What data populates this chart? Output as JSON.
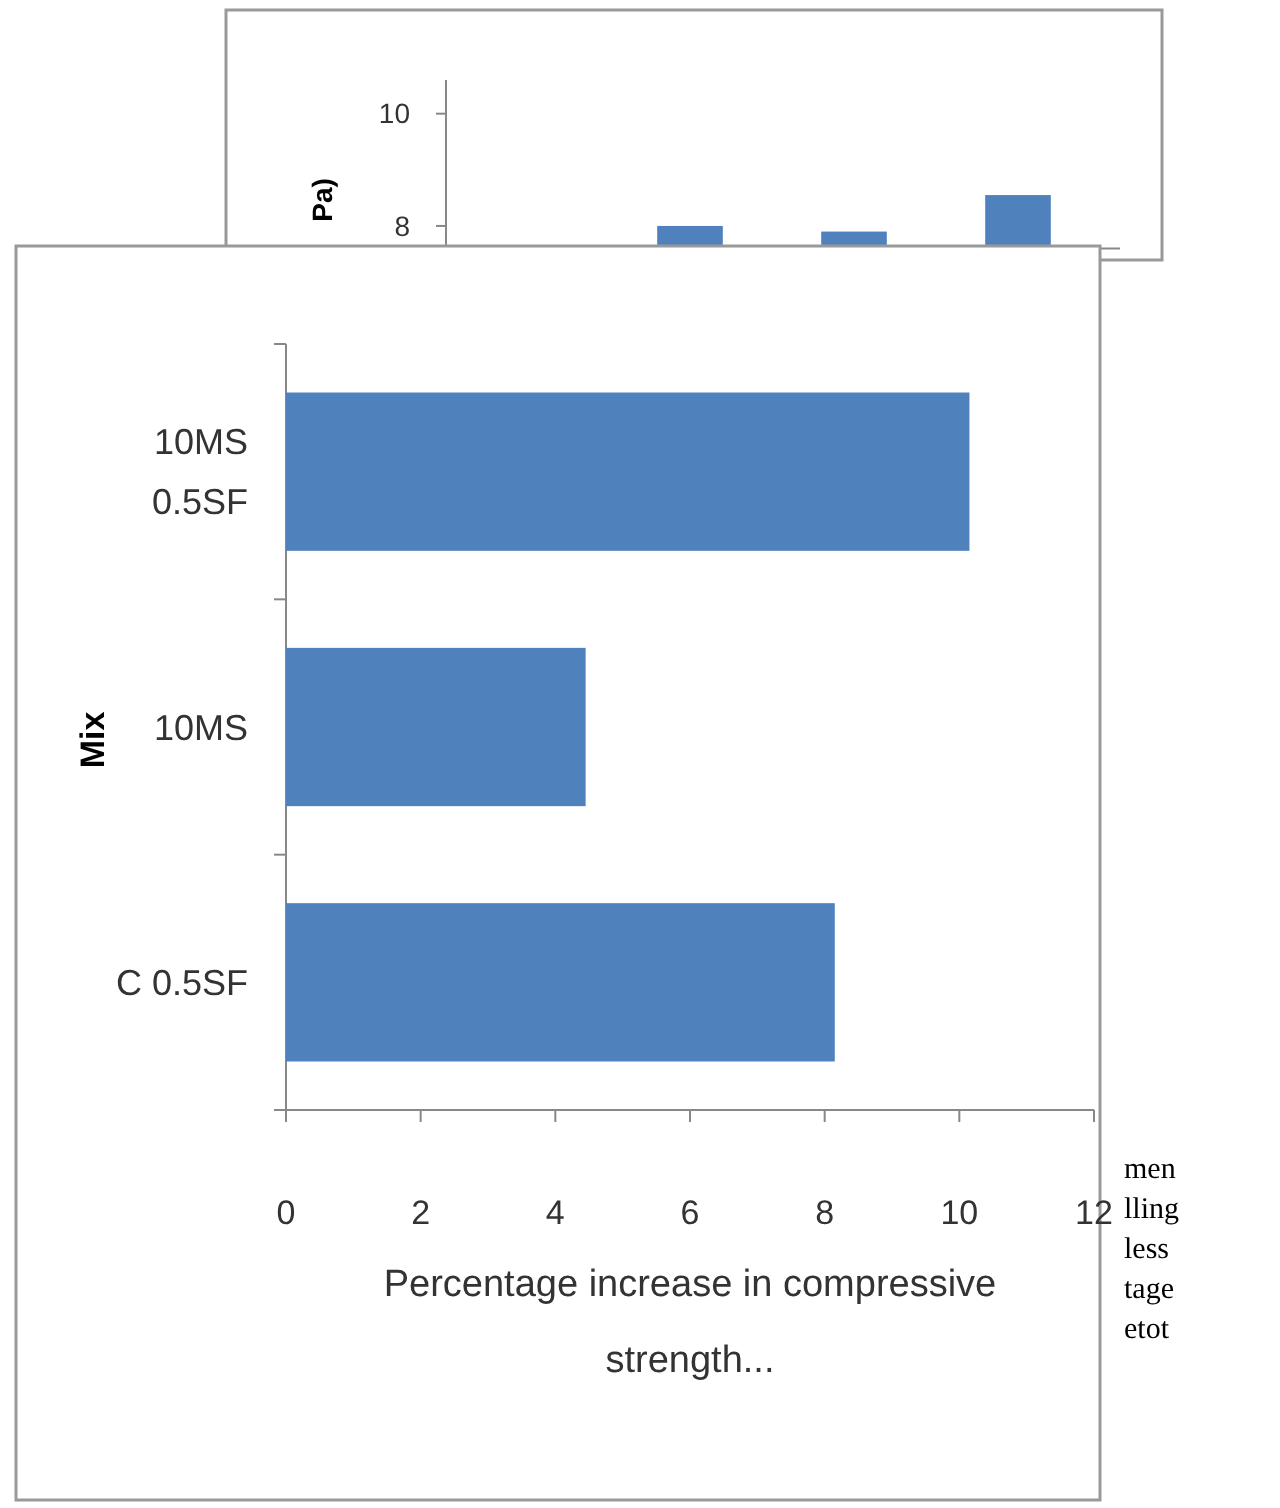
{
  "chart_data": [
    {
      "type": "bar",
      "ylabel": "Pa)",
      "categories": [
        null,
        null,
        null,
        null
      ],
      "values": [
        null,
        8,
        7.9,
        8.55
      ],
      "color": "#4f81bd",
      "ylim": [
        7.6,
        10.6
      ],
      "yticks": [
        8,
        10
      ]
    },
    {
      "type": "bar",
      "orientation": "horizontal",
      "xlabel": "Percentage increase in compressive strength...",
      "ylabel": "Mix",
      "categories": [
        "10MS 0.5SF",
        "10MS",
        "C 0.5SF"
      ],
      "values": [
        10.15,
        4.45,
        8.15
      ],
      "color": "#4f81bd",
      "xlim": [
        0,
        12
      ],
      "xticks": [
        0,
        2,
        4,
        6,
        8,
        10,
        12
      ],
      "grid": false
    },
    {
      "type": "other",
      "annotations": [
        "men",
        "lling",
        "less",
        "tage",
        "etot"
      ]
    }
  ]
}
